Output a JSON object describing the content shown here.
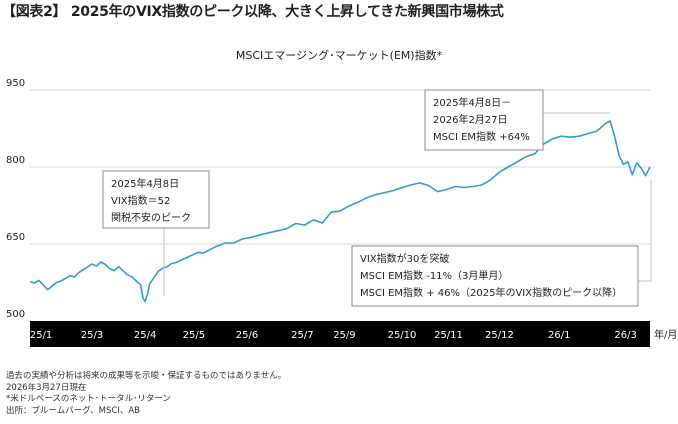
{
  "heading": "【図表2】 2025年のVIX指数のピーク以降、大きく上昇してきた新興国市場株式",
  "chart_data": {
    "type": "line",
    "title": "MSCIエマージング･マーケット(EM)指数*",
    "xlabel": "年/月",
    "ylabel": "",
    "ylim": [
      500,
      950
    ],
    "yticks": [
      500,
      650,
      800,
      950
    ],
    "x_tick_labels": [
      "25/1",
      "25/3",
      "25/4",
      "25/5",
      "25/6",
      "25/7",
      "25/9",
      "25/10",
      "25/11",
      "25/12",
      "26/1",
      "26/3"
    ],
    "x_tick_positions": [
      0.025,
      0.14,
      0.26,
      0.37,
      0.49,
      0.615,
      0.71,
      0.84,
      0.945,
      1.06,
      1.195,
      1.345
    ],
    "grid": "horizontal",
    "line_color": "#2f9fd6",
    "series": [
      {
        "x": [
          0.0,
          0.01,
          0.02,
          0.03,
          0.04,
          0.05,
          0.06,
          0.07,
          0.08,
          0.09,
          0.1,
          0.11,
          0.12,
          0.13,
          0.14,
          0.15,
          0.16,
          0.17,
          0.18,
          0.19,
          0.2,
          0.21,
          0.22,
          0.23,
          0.24,
          0.25,
          0.255,
          0.26,
          0.265,
          0.27,
          0.28,
          0.29,
          0.3,
          0.31,
          0.32,
          0.33,
          0.34,
          0.35,
          0.36,
          0.37,
          0.38,
          0.39,
          0.4,
          0.42,
          0.44,
          0.46,
          0.48,
          0.5,
          0.52,
          0.54,
          0.56,
          0.58,
          0.6,
          0.62,
          0.64,
          0.66,
          0.68,
          0.7,
          0.72,
          0.74,
          0.76,
          0.78,
          0.8,
          0.82,
          0.84,
          0.86,
          0.88,
          0.9,
          0.92,
          0.94,
          0.96,
          0.98,
          1.0,
          1.02,
          1.04,
          1.06,
          1.08,
          1.1,
          1.12,
          1.14,
          1.16,
          1.18,
          1.2,
          1.22,
          1.24,
          1.26,
          1.28,
          1.3,
          1.31,
          1.32,
          1.33,
          1.34,
          1.35,
          1.36,
          1.37,
          1.38,
          1.39,
          1.4
        ],
        "values": [
          577,
          574,
          579,
          570,
          561,
          568,
          575,
          578,
          583,
          588,
          586,
          594,
          600,
          605,
          611,
          607,
          615,
          610,
          602,
          598,
          606,
          598,
          590,
          586,
          578,
          570,
          545,
          538,
          552,
          572,
          585,
          597,
          603,
          606,
          612,
          614,
          618,
          622,
          626,
          630,
          634,
          632,
          636,
          645,
          652,
          652,
          660,
          663,
          668,
          672,
          676,
          680,
          690,
          687,
          697,
          691,
          712,
          714,
          724,
          731,
          740,
          746,
          750,
          754,
          760,
          765,
          769,
          764,
          752,
          756,
          762,
          760,
          762,
          765,
          775,
          790,
          800,
          810,
          820,
          826,
          845,
          855,
          860,
          858,
          860,
          865,
          870,
          885,
          890,
          860,
          823,
          805,
          810,
          785,
          808,
          798,
          783,
          800
        ]
      }
    ],
    "annotations": [
      {
        "lines": [
          "2025年4月8日",
          "VIX指数＝52",
          "関税不安のピーク"
        ]
      },
      {
        "lines": [
          "2025年4月8日－",
          "2026年2月27日",
          "MSCI EM指数 +64%"
        ]
      },
      {
        "lines": [
          "VIX指数が30を突破",
          "MSCI EM指数 -11%（3月単月）",
          "MSCI EM指数 + 46%（2025年のVIX指数のピーク以降）"
        ]
      }
    ]
  },
  "footnotes": [
    "過去の実績や分析は将来の成果等を示唆・保証するものではありません。",
    "2026年3月27日現在",
    "*米ドルベースのネット･トータル･リターン",
    "出所：ブルームバーグ、MSCI、AB"
  ]
}
